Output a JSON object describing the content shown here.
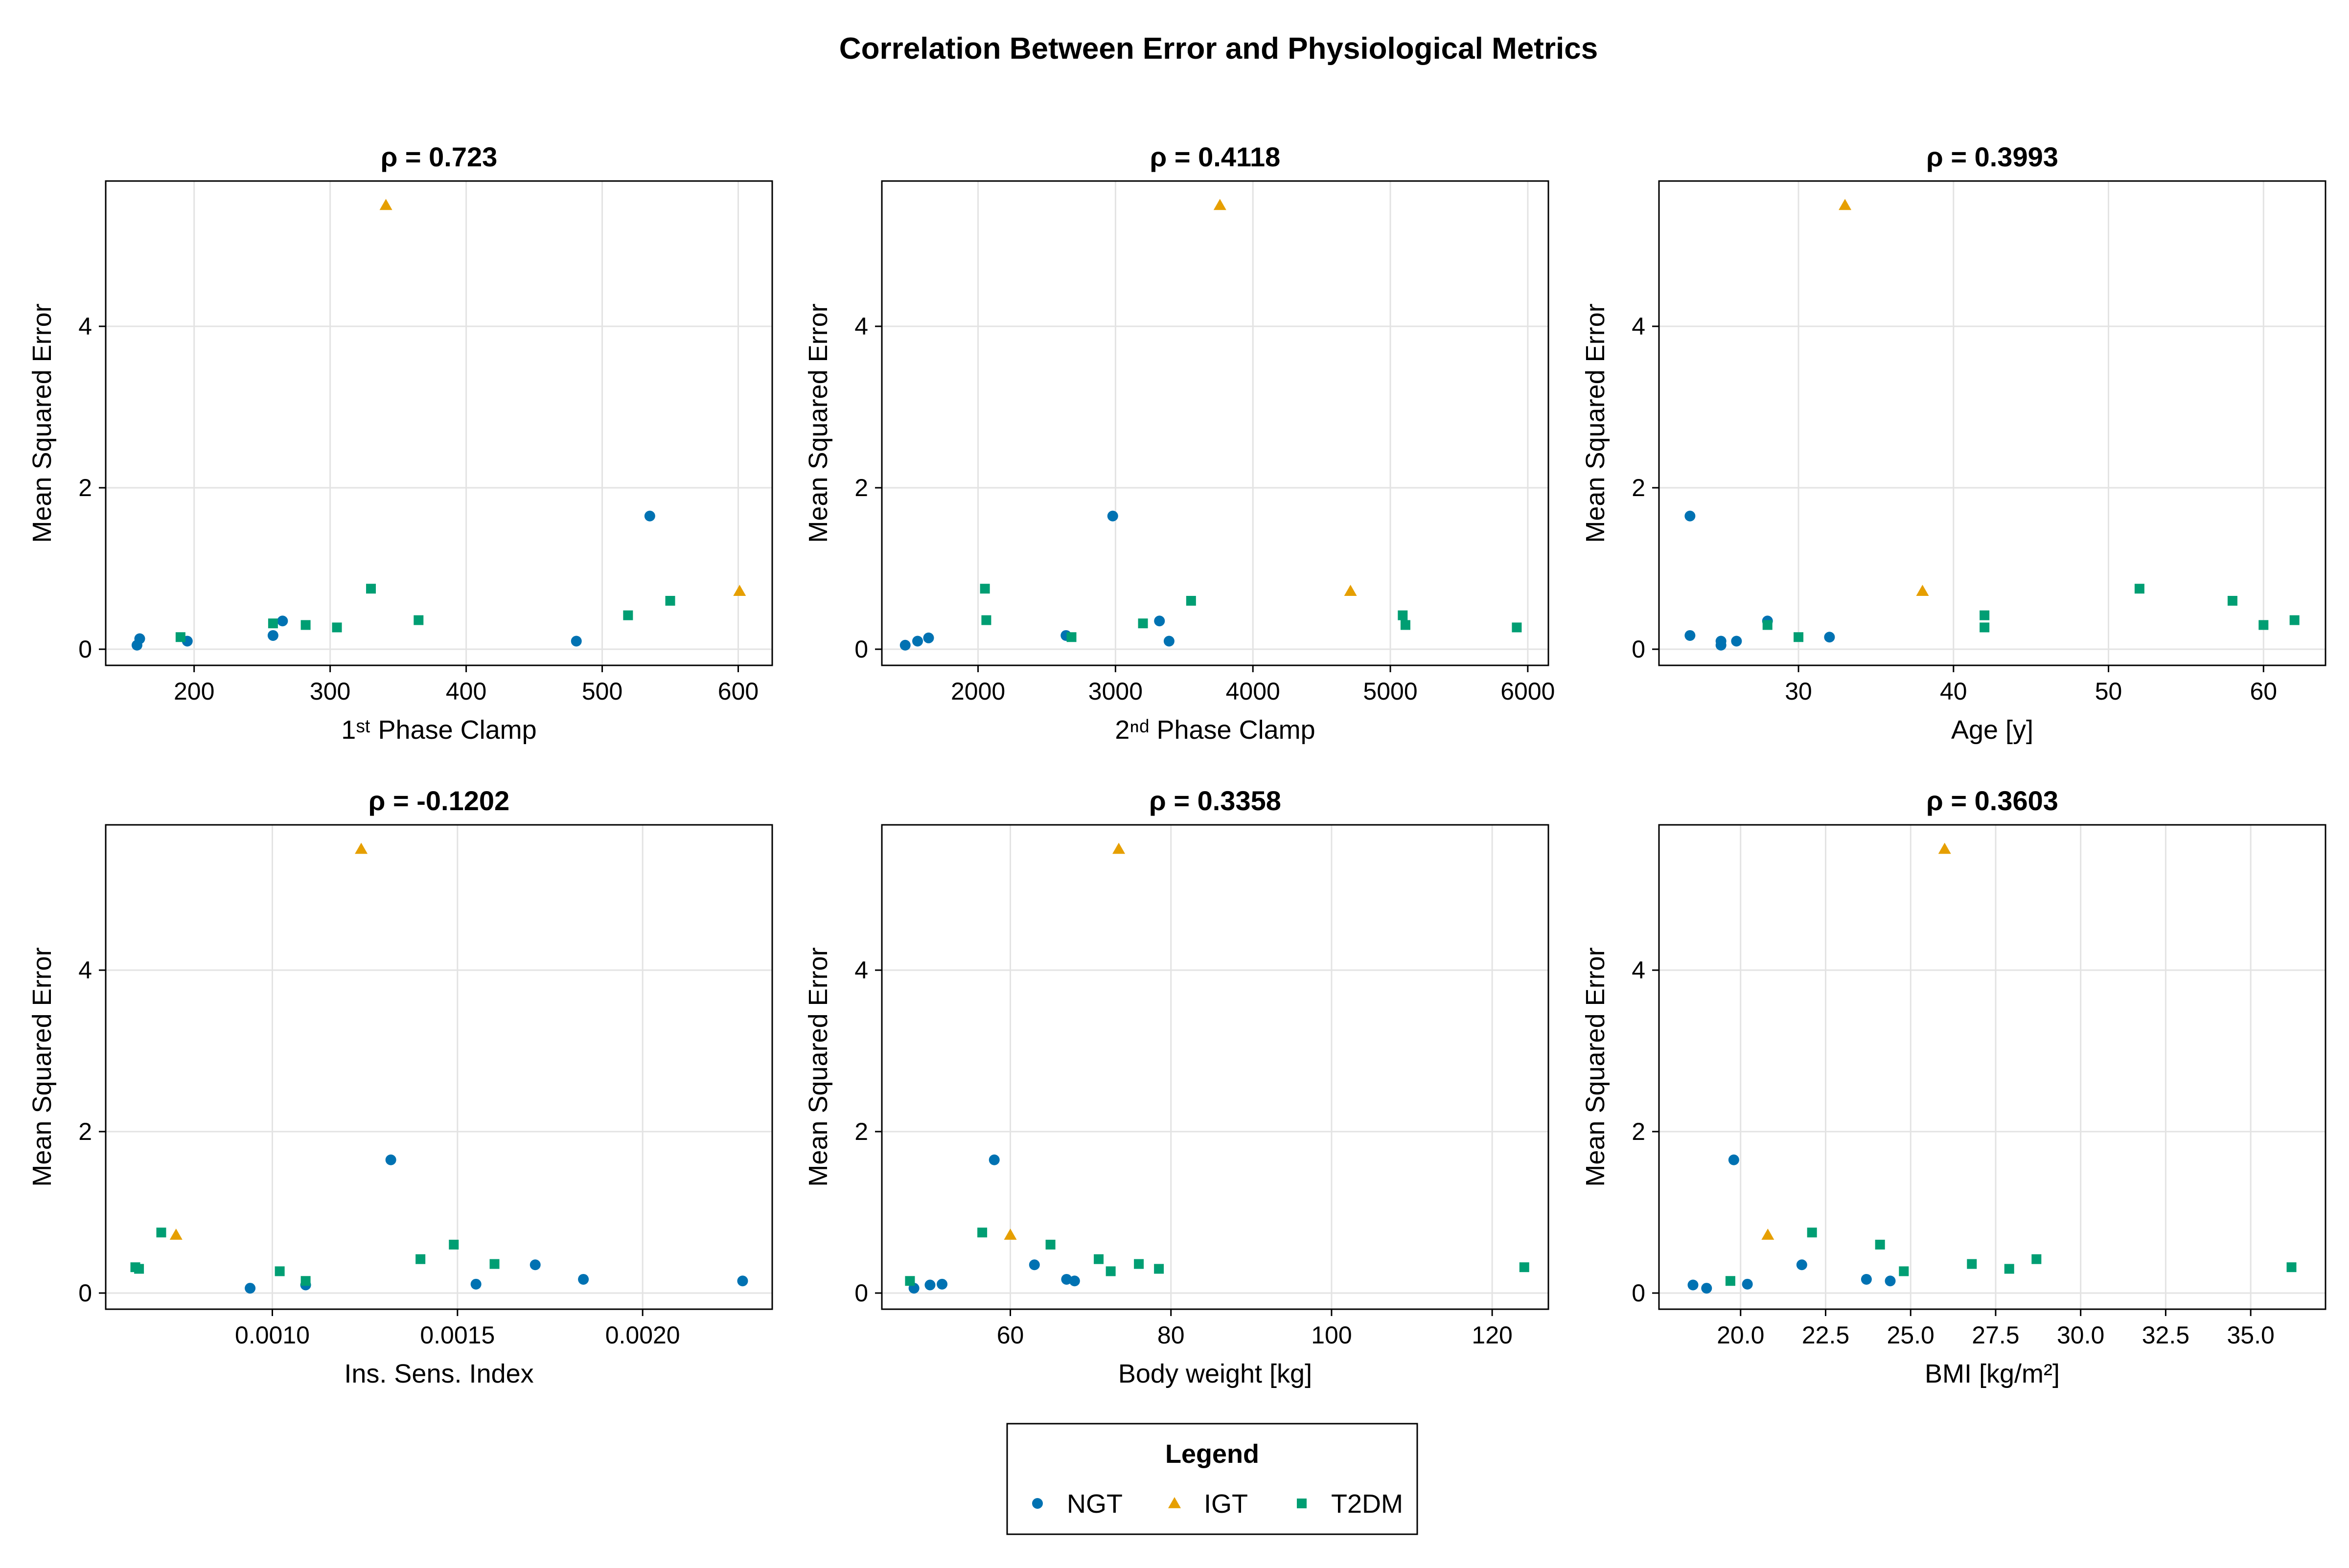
{
  "chart_data": {
    "title": "Correlation Between Error and Physiological Metrics",
    "legend": {
      "title": "Legend",
      "position": "bottom-center",
      "entries": [
        {
          "name": "NGT",
          "color": "#0072B2",
          "marker": "circle"
        },
        {
          "name": "IGT",
          "color": "#E69F00",
          "marker": "triangle"
        },
        {
          "name": "T2DM",
          "color": "#009E73",
          "marker": "square"
        }
      ]
    },
    "panels": [
      {
        "type": "scatter",
        "title": "ρ = 0.723",
        "xlabel": "1ˢᵗ Phase Clamp",
        "ylabel": "Mean Squared Error",
        "xlim": [
          135,
          625
        ],
        "ylim": [
          -0.2,
          5.8
        ],
        "xticks": [
          200,
          300,
          400,
          500,
          600
        ],
        "xtick_labels": [
          "200",
          "300",
          "400",
          "500",
          "600"
        ],
        "yticks": [
          0,
          2,
          4
        ],
        "ytick_labels": [
          "0",
          "2",
          "4"
        ],
        "grid": true,
        "series": [
          {
            "name": "NGT",
            "points": [
              [
                158,
                0.05
              ],
              [
                160,
                0.13
              ],
              [
                195,
                0.1
              ],
              [
                258,
                0.17
              ],
              [
                265,
                0.35
              ],
              [
                481,
                0.1
              ],
              [
                535,
                1.65
              ]
            ]
          },
          {
            "name": "IGT",
            "points": [
              [
                341,
                5.5
              ],
              [
                601,
                0.72
              ]
            ]
          },
          {
            "name": "T2DM",
            "points": [
              [
                190,
                0.15
              ],
              [
                258,
                0.32
              ],
              [
                282,
                0.3
              ],
              [
                305,
                0.27
              ],
              [
                330,
                0.75
              ],
              [
                365,
                0.36
              ],
              [
                519,
                0.42
              ],
              [
                550,
                0.6
              ]
            ]
          }
        ]
      },
      {
        "type": "scatter",
        "title": "ρ = 0.4118",
        "xlabel": "2ⁿᵈ Phase Clamp",
        "ylabel": "Mean Squared Error",
        "xlim": [
          1300,
          6150
        ],
        "ylim": [
          -0.2,
          5.8
        ],
        "xticks": [
          2000,
          3000,
          4000,
          5000,
          6000
        ],
        "xtick_labels": [
          "2000",
          "3000",
          "4000",
          "5000",
          "6000"
        ],
        "yticks": [
          0,
          2,
          4
        ],
        "ytick_labels": [
          "0",
          "2",
          "4"
        ],
        "grid": true,
        "series": [
          {
            "name": "NGT",
            "points": [
              [
                1470,
                0.05
              ],
              [
                1560,
                0.1
              ],
              [
                1640,
                0.14
              ],
              [
                2640,
                0.17
              ],
              [
                2980,
                1.65
              ],
              [
                3320,
                0.35
              ],
              [
                3390,
                0.1
              ]
            ]
          },
          {
            "name": "IGT",
            "points": [
              [
                3760,
                5.5
              ],
              [
                4710,
                0.72
              ]
            ]
          },
          {
            "name": "T2DM",
            "points": [
              [
                2050,
                0.75
              ],
              [
                2060,
                0.36
              ],
              [
                2680,
                0.15
              ],
              [
                3200,
                0.32
              ],
              [
                3550,
                0.6
              ],
              [
                5090,
                0.42
              ],
              [
                5110,
                0.3
              ],
              [
                5920,
                0.27
              ]
            ]
          }
        ]
      },
      {
        "type": "scatter",
        "title": "ρ = 0.3993",
        "xlabel": "Age [y]",
        "ylabel": "Mean Squared Error",
        "xlim": [
          21,
          64
        ],
        "ylim": [
          -0.2,
          5.8
        ],
        "xticks": [
          30,
          40,
          50,
          60
        ],
        "xtick_labels": [
          "30",
          "40",
          "50",
          "60"
        ],
        "yticks": [
          0,
          2,
          4
        ],
        "ytick_labels": [
          "0",
          "2",
          "4"
        ],
        "grid": true,
        "series": [
          {
            "name": "NGT",
            "points": [
              [
                23,
                1.65
              ],
              [
                23,
                0.17
              ],
              [
                25,
                0.1
              ],
              [
                25,
                0.05
              ],
              [
                26,
                0.1
              ],
              [
                28,
                0.35
              ],
              [
                32,
                0.15
              ]
            ]
          },
          {
            "name": "IGT",
            "points": [
              [
                33,
                5.5
              ],
              [
                38,
                0.72
              ]
            ]
          },
          {
            "name": "T2DM",
            "points": [
              [
                28,
                0.3
              ],
              [
                30,
                0.15
              ],
              [
                42,
                0.42
              ],
              [
                42,
                0.27
              ],
              [
                52,
                0.75
              ],
              [
                58,
                0.6
              ],
              [
                60,
                0.3
              ],
              [
                62,
                0.36
              ]
            ]
          }
        ]
      },
      {
        "type": "scatter",
        "title": "ρ = -0.1202",
        "xlabel": "Ins. Sens. Index",
        "ylabel": "Mean Squared Error",
        "xlim": [
          0.00055,
          0.00235
        ],
        "ylim": [
          -0.2,
          5.8
        ],
        "xticks": [
          0.001,
          0.0015,
          0.002
        ],
        "xtick_labels": [
          "0.0010",
          "0.0015",
          "0.0020"
        ],
        "yticks": [
          0,
          2,
          4
        ],
        "ytick_labels": [
          "0",
          "2",
          "4"
        ],
        "grid": true,
        "series": [
          {
            "name": "NGT",
            "points": [
              [
                0.00094,
                0.06
              ],
              [
                0.00109,
                0.1
              ],
              [
                0.00132,
                1.65
              ],
              [
                0.00155,
                0.11
              ],
              [
                0.00171,
                0.35
              ],
              [
                0.00184,
                0.17
              ],
              [
                0.00227,
                0.15
              ]
            ]
          },
          {
            "name": "IGT",
            "points": [
              [
                0.00124,
                5.5
              ],
              [
                0.00074,
                0.72
              ]
            ]
          },
          {
            "name": "T2DM",
            "points": [
              [
                0.00063,
                0.32
              ],
              [
                0.00064,
                0.3
              ],
              [
                0.0007,
                0.75
              ],
              [
                0.00102,
                0.27
              ],
              [
                0.00109,
                0.15
              ],
              [
                0.0014,
                0.42
              ],
              [
                0.00149,
                0.6
              ],
              [
                0.0016,
                0.36
              ]
            ]
          }
        ]
      },
      {
        "type": "scatter",
        "title": "ρ = 0.3358",
        "xlabel": "Body weight [kg]",
        "ylabel": "Mean Squared Error",
        "xlim": [
          44,
          127
        ],
        "ylim": [
          -0.2,
          5.8
        ],
        "xticks": [
          60,
          80,
          100,
          120
        ],
        "xtick_labels": [
          "60",
          "80",
          "100",
          "120"
        ],
        "yticks": [
          0,
          2,
          4
        ],
        "ytick_labels": [
          "0",
          "2",
          "4"
        ],
        "grid": true,
        "series": [
          {
            "name": "NGT",
            "points": [
              [
                48,
                0.06
              ],
              [
                50,
                0.1
              ],
              [
                51.5,
                0.11
              ],
              [
                58,
                1.65
              ],
              [
                63,
                0.35
              ],
              [
                67,
                0.17
              ],
              [
                68,
                0.15
              ]
            ]
          },
          {
            "name": "IGT",
            "points": [
              [
                73.5,
                5.5
              ],
              [
                60,
                0.72
              ]
            ]
          },
          {
            "name": "T2DM",
            "points": [
              [
                47.5,
                0.15
              ],
              [
                56.5,
                0.75
              ],
              [
                65,
                0.6
              ],
              [
                71,
                0.42
              ],
              [
                72.5,
                0.27
              ],
              [
                76,
                0.36
              ],
              [
                78.5,
                0.3
              ],
              [
                124,
                0.32
              ]
            ]
          }
        ]
      },
      {
        "type": "scatter",
        "title": "ρ = 0.3603",
        "xlabel": "BMI [kg/m²]",
        "ylabel": "Mean Squared Error",
        "xlim": [
          17.6,
          37.2
        ],
        "ylim": [
          -0.2,
          5.8
        ],
        "xticks": [
          20,
          22.5,
          25,
          27.5,
          30,
          32.5,
          35
        ],
        "xtick_labels": [
          "20.0",
          "22.5",
          "25.0",
          "27.5",
          "30.0",
          "32.5",
          "35.0"
        ],
        "yticks": [
          0,
          2,
          4
        ],
        "ytick_labels": [
          "0",
          "2",
          "4"
        ],
        "grid": true,
        "series": [
          {
            "name": "NGT",
            "points": [
              [
                18.6,
                0.1
              ],
              [
                19,
                0.06
              ],
              [
                19.8,
                1.65
              ],
              [
                20.2,
                0.11
              ],
              [
                21.8,
                0.35
              ],
              [
                23.7,
                0.17
              ],
              [
                24.4,
                0.15
              ]
            ]
          },
          {
            "name": "IGT",
            "points": [
              [
                26,
                5.5
              ],
              [
                20.8,
                0.72
              ]
            ]
          },
          {
            "name": "T2DM",
            "points": [
              [
                19.7,
                0.15
              ],
              [
                22.1,
                0.75
              ],
              [
                24.1,
                0.6
              ],
              [
                24.8,
                0.27
              ],
              [
                26.8,
                0.36
              ],
              [
                27.9,
                0.3
              ],
              [
                28.7,
                0.42
              ],
              [
                36.2,
                0.32
              ]
            ]
          }
        ]
      }
    ]
  }
}
